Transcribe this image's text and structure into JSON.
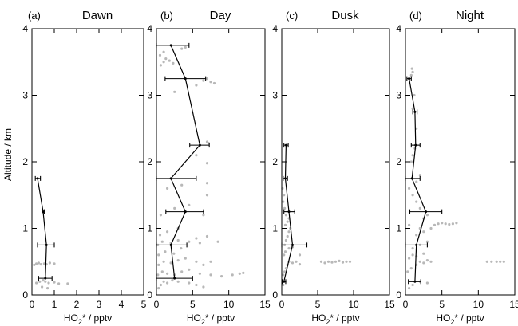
{
  "chart_data": [
    {
      "type": "scatter",
      "letter": "(a)",
      "title": "Dawn",
      "xlabel_parts": [
        "HO",
        "2",
        "* / pptv"
      ],
      "ylabel": "",
      "xlim": [
        0,
        5
      ],
      "ylim": [
        0,
        4
      ],
      "xticks": [
        0,
        1,
        2,
        3,
        4,
        5
      ],
      "yticks": [
        0,
        1,
        2,
        3,
        4
      ],
      "x_tick_labels": [
        "0",
        "1",
        "2",
        "3",
        "4",
        "5"
      ],
      "y_tick_labels": [
        "0",
        "1",
        "2",
        "3",
        "4"
      ],
      "series": [
        {
          "points": [
            [
              0.2,
              0.18
            ],
            [
              0.35,
              0.2
            ],
            [
              0.5,
              0.22
            ],
            [
              0.6,
              0.2
            ],
            [
              0.75,
              0.18
            ],
            [
              1.0,
              0.19
            ],
            [
              1.2,
              0.17
            ],
            [
              1.6,
              0.17
            ],
            [
              0.1,
              0.45
            ],
            [
              0.2,
              0.47
            ],
            [
              0.3,
              0.48
            ],
            [
              0.4,
              0.46
            ],
            [
              0.55,
              0.47
            ],
            [
              0.65,
              0.46
            ],
            [
              0.8,
              0.48
            ],
            [
              1.0,
              0.47
            ],
            [
              0.45,
              0.12
            ],
            [
              0.7,
              0.1
            ]
          ]
        },
        {
          "profile": [
            {
              "alt": 0.25,
              "mean": 0.6,
              "lo": 0.3,
              "hi": 0.9
            },
            {
              "alt": 0.75,
              "mean": 0.65,
              "lo": 0.25,
              "hi": 1.0
            },
            {
              "alt": 1.25,
              "mean": 0.5,
              "lo": 0.45,
              "hi": 0.55
            },
            {
              "alt": 1.75,
              "mean": 0.25,
              "lo": 0.15,
              "hi": 0.38
            }
          ]
        }
      ]
    },
    {
      "type": "scatter",
      "letter": "(b)",
      "title": "Day",
      "xlabel_parts": [
        "HO",
        "2",
        "* / pptv"
      ],
      "ylabel": "",
      "xlim": [
        0,
        15
      ],
      "ylim": [
        0,
        4
      ],
      "xticks": [
        0,
        5,
        10,
        15
      ],
      "yticks": [
        0,
        1,
        2,
        3,
        4
      ],
      "x_tick_labels": [
        "0",
        "5",
        "10",
        "15"
      ],
      "y_tick_labels": [
        "0",
        "1",
        "2",
        "3",
        "4"
      ],
      "series": [
        {
          "points": [
            [
              0.3,
              0.1
            ],
            [
              0.6,
              0.15
            ],
            [
              1.0,
              0.2
            ],
            [
              1.5,
              0.18
            ],
            [
              2.2,
              0.22
            ],
            [
              3.0,
              0.2
            ],
            [
              4.5,
              0.18
            ],
            [
              5.5,
              0.15
            ],
            [
              6.5,
              0.12
            ],
            [
              0.2,
              0.3
            ],
            [
              0.8,
              0.35
            ],
            [
              1.5,
              0.32
            ],
            [
              2.5,
              0.3
            ],
            [
              3.5,
              0.35
            ],
            [
              4.5,
              0.38
            ],
            [
              6.0,
              0.32
            ],
            [
              7.5,
              0.3
            ],
            [
              9.0,
              0.28
            ],
            [
              10.5,
              0.3
            ],
            [
              11.5,
              0.32
            ],
            [
              12.0,
              0.33
            ],
            [
              0.3,
              0.45
            ],
            [
              1.0,
              0.5
            ],
            [
              2.0,
              0.48
            ],
            [
              3.0,
              0.52
            ],
            [
              4.0,
              0.55
            ],
            [
              5.5,
              0.5
            ],
            [
              6.5,
              0.45
            ],
            [
              7.5,
              0.5
            ],
            [
              0.3,
              0.6
            ],
            [
              1.2,
              0.65
            ],
            [
              2.4,
              0.62
            ],
            [
              3.4,
              0.7
            ],
            [
              0.2,
              0.75
            ],
            [
              0.8,
              0.8
            ],
            [
              2.0,
              0.78
            ],
            [
              3.0,
              0.82
            ],
            [
              4.5,
              0.8
            ],
            [
              6.0,
              0.78
            ],
            [
              0.5,
              0.9
            ],
            [
              1.5,
              0.95
            ],
            [
              3.0,
              1.0
            ],
            [
              5.5,
              0.85
            ],
            [
              7.0,
              0.88
            ],
            [
              8.5,
              0.8
            ],
            [
              0.6,
              1.2
            ],
            [
              2.5,
              1.3
            ],
            [
              4.5,
              1.35
            ],
            [
              6.5,
              1.2
            ],
            [
              7.0,
              1.5
            ],
            [
              1.5,
              1.6
            ],
            [
              3.5,
              1.65
            ],
            [
              7.0,
              1.68
            ],
            [
              7.0,
              1.98
            ],
            [
              5.5,
              2.1
            ],
            [
              7.0,
              2.3
            ],
            [
              7.2,
              2.28
            ],
            [
              0.6,
              3.45
            ],
            [
              1.0,
              3.5
            ],
            [
              1.3,
              3.55
            ],
            [
              1.8,
              3.52
            ],
            [
              2.3,
              3.48
            ],
            [
              0.5,
              3.6
            ],
            [
              1.0,
              3.65
            ],
            [
              3.5,
              3.7
            ],
            [
              4.0,
              3.72
            ],
            [
              6.5,
              3.22
            ],
            [
              7.0,
              3.25
            ],
            [
              7.5,
              3.2
            ],
            [
              8.0,
              3.18
            ],
            [
              5.5,
              3.15
            ],
            [
              2.5,
              3.05
            ]
          ]
        },
        {
          "profile": [
            {
              "alt": 0.25,
              "mean": 2.5,
              "lo": 0.0,
              "hi": 5.0
            },
            {
              "alt": 0.75,
              "mean": 2.0,
              "lo": 0.0,
              "hi": 4.2
            },
            {
              "alt": 1.25,
              "mean": 4.0,
              "lo": 1.3,
              "hi": 6.5
            },
            {
              "alt": 1.75,
              "mean": 2.0,
              "lo": 0.0,
              "hi": 5.5
            },
            {
              "alt": 2.25,
              "mean": 6.0,
              "lo": 4.6,
              "hi": 7.3
            },
            {
              "alt": 3.25,
              "mean": 4.0,
              "lo": 1.2,
              "hi": 6.8
            },
            {
              "alt": 3.75,
              "mean": 2.0,
              "lo": 0.0,
              "hi": 4.5
            }
          ]
        }
      ]
    },
    {
      "type": "scatter",
      "letter": "(c)",
      "title": "Dusk",
      "xlabel_parts": [
        "HO",
        "2",
        "* / pptv"
      ],
      "ylabel": "",
      "xlim": [
        0,
        15
      ],
      "ylim": [
        0,
        4
      ],
      "xticks": [
        0,
        5,
        10,
        15
      ],
      "yticks": [
        0,
        1,
        2,
        3,
        4
      ],
      "x_tick_labels": [
        "0",
        "5",
        "10",
        "15"
      ],
      "y_tick_labels": [
        "0",
        "1",
        "2",
        "3",
        "4"
      ],
      "series": [
        {
          "points": [
            [
              0.2,
              0.3
            ],
            [
              0.4,
              0.35
            ],
            [
              0.6,
              0.4
            ],
            [
              0.8,
              0.45
            ],
            [
              1.0,
              0.5
            ],
            [
              1.5,
              0.48
            ],
            [
              2.0,
              0.5
            ],
            [
              2.5,
              0.46
            ],
            [
              5.5,
              0.5
            ],
            [
              6.0,
              0.48
            ],
            [
              6.5,
              0.5
            ],
            [
              7.0,
              0.49
            ],
            [
              7.5,
              0.5
            ],
            [
              8.0,
              0.51
            ],
            [
              8.5,
              0.49
            ],
            [
              9.0,
              0.5
            ],
            [
              9.5,
              0.5
            ],
            [
              0.3,
              0.6
            ],
            [
              0.5,
              0.65
            ],
            [
              1.0,
              0.7
            ],
            [
              1.5,
              0.72
            ],
            [
              2.5,
              0.6
            ],
            [
              0.4,
              0.75
            ],
            [
              0.6,
              0.82
            ],
            [
              0.8,
              0.88
            ],
            [
              1.0,
              0.95
            ],
            [
              1.2,
              1.0
            ],
            [
              0.5,
              1.05
            ],
            [
              0.8,
              1.1
            ],
            [
              1.0,
              1.15
            ],
            [
              0.6,
              1.2
            ],
            [
              0.4,
              1.3
            ],
            [
              0.2,
              1.4
            ],
            [
              0.3,
              1.5
            ],
            [
              0.1,
              1.6
            ],
            [
              0.5,
              0.2
            ],
            [
              0.2,
              0.15
            ]
          ]
        },
        {
          "profile": [
            {
              "alt": 0.2,
              "mean": 0.3,
              "lo": 0.05,
              "hi": 0.55
            },
            {
              "alt": 0.75,
              "mean": 1.5,
              "lo": 0.0,
              "hi": 3.5
            },
            {
              "alt": 1.25,
              "mean": 1.0,
              "lo": 0.3,
              "hi": 1.8
            },
            {
              "alt": 1.75,
              "mean": 0.5,
              "lo": 0.2,
              "hi": 0.8
            },
            {
              "alt": 2.25,
              "mean": 0.6,
              "lo": 0.3,
              "hi": 0.9
            }
          ]
        }
      ]
    },
    {
      "type": "scatter",
      "letter": "(d)",
      "title": "Night",
      "xlabel_parts": [
        "HO",
        "2",
        "* / pptv"
      ],
      "ylabel": "",
      "xlim": [
        0,
        15
      ],
      "ylim": [
        0,
        4
      ],
      "xticks": [
        0,
        5,
        10,
        15
      ],
      "yticks": [
        0,
        1,
        2,
        3,
        4
      ],
      "x_tick_labels": [
        "0",
        "5",
        "10",
        "15"
      ],
      "y_tick_labels": [
        "0",
        "1",
        "2",
        "3",
        "4"
      ],
      "series": [
        {
          "points": [
            [
              0.5,
              0.1
            ],
            [
              1.0,
              0.15
            ],
            [
              2.0,
              0.2
            ],
            [
              3.0,
              0.18
            ],
            [
              0.3,
              0.35
            ],
            [
              0.8,
              0.4
            ],
            [
              1.5,
              0.45
            ],
            [
              2.0,
              0.5
            ],
            [
              2.5,
              0.48
            ],
            [
              3.0,
              0.52
            ],
            [
              3.5,
              0.5
            ],
            [
              0.5,
              0.55
            ],
            [
              1.0,
              0.6
            ],
            [
              1.5,
              0.58
            ],
            [
              2.5,
              0.62
            ],
            [
              11.2,
              0.5
            ],
            [
              11.8,
              0.5
            ],
            [
              12.5,
              0.5
            ],
            [
              13.0,
              0.5
            ],
            [
              13.5,
              0.5
            ],
            [
              1.0,
              0.7
            ],
            [
              2.0,
              0.75
            ],
            [
              3.0,
              0.8
            ],
            [
              1.5,
              0.9
            ],
            [
              2.5,
              0.95
            ],
            [
              3.5,
              1.0
            ],
            [
              0.5,
              1.05
            ],
            [
              2.0,
              1.0
            ],
            [
              4.0,
              1.05
            ],
            [
              4.5,
              1.07
            ],
            [
              5.0,
              1.08
            ],
            [
              5.5,
              1.07
            ],
            [
              6.0,
              1.06
            ],
            [
              6.5,
              1.07
            ],
            [
              7.0,
              1.08
            ],
            [
              2.5,
              1.15
            ],
            [
              3.0,
              1.2
            ],
            [
              2.0,
              1.3
            ],
            [
              1.5,
              1.4
            ],
            [
              1.0,
              1.5
            ],
            [
              0.5,
              1.6
            ],
            [
              1.5,
              1.7
            ],
            [
              2.0,
              1.8
            ],
            [
              0.8,
              2.0
            ],
            [
              1.0,
              2.1
            ],
            [
              1.3,
              2.2
            ],
            [
              1.5,
              2.5
            ],
            [
              1.0,
              2.8
            ],
            [
              1.2,
              3.0
            ],
            [
              0.8,
              3.3
            ],
            [
              1.0,
              3.35
            ],
            [
              0.9,
              3.4
            ]
          ]
        },
        {
          "profile": [
            {
              "alt": 0.2,
              "mean": 1.3,
              "lo": 0.4,
              "hi": 2.1
            },
            {
              "alt": 0.75,
              "mean": 1.5,
              "lo": 0.0,
              "hi": 3.0
            },
            {
              "alt": 1.25,
              "mean": 2.8,
              "lo": 0.6,
              "hi": 5.0
            },
            {
              "alt": 1.75,
              "mean": 0.9,
              "lo": 0.0,
              "hi": 2.0
            },
            {
              "alt": 2.25,
              "mean": 1.4,
              "lo": 0.8,
              "hi": 2.0
            },
            {
              "alt": 2.75,
              "mean": 1.3,
              "lo": 1.0,
              "hi": 1.6
            },
            {
              "alt": 3.25,
              "mean": 0.5,
              "lo": 0.2,
              "hi": 0.8
            }
          ]
        }
      ]
    }
  ],
  "shared": {
    "ylabel": "Altitude / km"
  },
  "colors": {
    "points": "#b8b8b8",
    "line": "#000000"
  }
}
